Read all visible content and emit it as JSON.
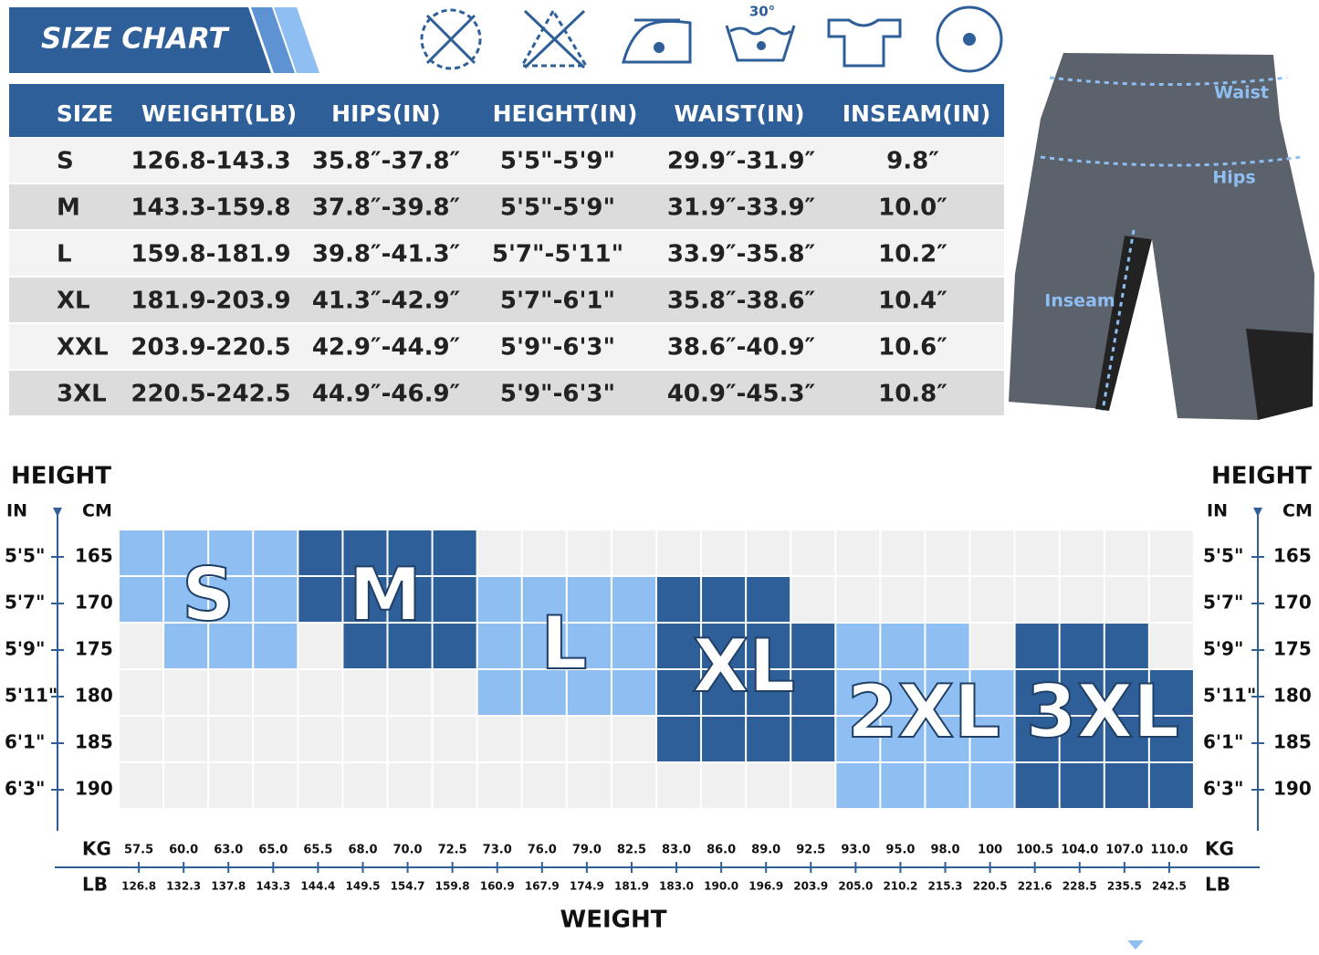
{
  "header": {
    "title": "SIZE CHART"
  },
  "care_icons": {
    "wash_temperature": "30°"
  },
  "table": {
    "columns": [
      "SIZE",
      "WEIGHT(LB)",
      "HIPS(IN)",
      "HEIGHT(IN)",
      "WAIST(IN)",
      "INSEAM(IN)"
    ],
    "rows": [
      [
        "S",
        "126.8-143.3",
        "35.8″-37.8″",
        "5'5\"-5'9\"",
        "29.9″-31.9″",
        "9.8″"
      ],
      [
        "M",
        "143.3-159.8",
        "37.8″-39.8″",
        "5'5\"-5'9\"",
        "31.9″-33.9″",
        "10.0″"
      ],
      [
        "L",
        "159.8-181.9",
        "39.8″-41.3″",
        "5'7\"-5'11\"",
        "33.9″-35.8″",
        "10.2″"
      ],
      [
        "XL",
        "181.9-203.9",
        "41.3″-42.9″",
        "5'7\"-6'1\"",
        "35.8″-38.6″",
        "10.4″"
      ],
      [
        "XXL",
        "203.9-220.5",
        "42.9″-44.9″",
        "5'9\"-6'3\"",
        "38.6″-40.9″",
        "10.6″"
      ],
      [
        "3XL",
        "220.5-242.5",
        "44.9″-46.9″",
        "5'9\"-6'3\"",
        "40.9″-45.3″",
        "10.8″"
      ]
    ]
  },
  "measure_labels": [
    "Waist",
    "Hips",
    "Inseam"
  ],
  "grid_chart": {
    "height_title": "HEIGHT",
    "inch_unit": "IN",
    "cm_unit": "CM",
    "heights_in": [
      "5'5\"",
      "5'7\"",
      "5'9\"",
      "5'11\"",
      "6'1\"",
      "6'3\""
    ],
    "heights_cm": [
      "165",
      "170",
      "175",
      "180",
      "185",
      "190"
    ],
    "kg_unit": "KG",
    "lb_unit": "LB",
    "weight_title": "WEIGHT",
    "weights_kg": [
      "57.5",
      "60.0",
      "63.0",
      "65.0",
      "65.5",
      "68.0",
      "70.0",
      "72.5",
      "73.0",
      "76.0",
      "79.0",
      "82.5",
      "83.0",
      "86.0",
      "89.0",
      "92.5",
      "93.0",
      "95.0",
      "98.0",
      "100",
      "100.5",
      "104.0",
      "107.0",
      "110.0"
    ],
    "weights_lb": [
      "126.8",
      "132.3",
      "137.8",
      "143.3",
      "144.4",
      "149.5",
      "154.7",
      "159.8",
      "160.9",
      "167.9",
      "174.9",
      "181.9",
      "183.0",
      "190.0",
      "196.9",
      "203.9",
      "205.0",
      "210.2",
      "215.3",
      "220.5",
      "221.6",
      "228.5",
      "235.5",
      "242.5"
    ],
    "sizes": [
      {
        "label": "S",
        "color": "#8fbff2"
      },
      {
        "label": "M",
        "color": "#2f5f99"
      },
      {
        "label": "L",
        "color": "#8fbff2"
      },
      {
        "label": "XL",
        "color": "#2f5f99"
      },
      {
        "label": "2XL",
        "color": "#8fbff2"
      },
      {
        "label": "3XL",
        "color": "#2f5f99"
      }
    ],
    "cells": [
      [
        "S",
        "S",
        "S",
        "S",
        "M",
        "M",
        "M",
        "M",
        null,
        null,
        null,
        null,
        null,
        null,
        null,
        null,
        null,
        null,
        null,
        null,
        null,
        null,
        null,
        null
      ],
      [
        "S",
        "S",
        "S",
        "S",
        "M",
        "M",
        "M",
        "M",
        "L",
        "L",
        "L",
        "L",
        "XL",
        "XL",
        "XL",
        null,
        null,
        null,
        null,
        null,
        null,
        null,
        null,
        null
      ],
      [
        null,
        "S",
        "S",
        "S",
        null,
        "M",
        "M",
        "M",
        "L",
        "L",
        "L",
        "L",
        "XL",
        "XL",
        "XL",
        "XL",
        "2XL",
        "2XL",
        "2XL",
        null,
        "3XL",
        "3XL",
        "3XL",
        null
      ],
      [
        null,
        null,
        null,
        null,
        null,
        null,
        null,
        null,
        "L",
        "L",
        "L",
        "L",
        "XL",
        "XL",
        "XL",
        "XL",
        "2XL",
        "2XL",
        "2XL",
        "2XL",
        "3XL",
        "3XL",
        "3XL",
        "3XL"
      ],
      [
        null,
        null,
        null,
        null,
        null,
        null,
        null,
        null,
        null,
        null,
        null,
        null,
        "XL",
        "XL",
        "XL",
        "XL",
        "2XL",
        "2XL",
        "2XL",
        "2XL",
        "3XL",
        "3XL",
        "3XL",
        "3XL"
      ],
      [
        null,
        null,
        null,
        null,
        null,
        null,
        null,
        null,
        null,
        null,
        null,
        null,
        null,
        null,
        null,
        null,
        "2XL",
        "2XL",
        "2XL",
        "2XL",
        "3XL",
        "3XL",
        "3XL",
        "3XL"
      ]
    ]
  }
}
